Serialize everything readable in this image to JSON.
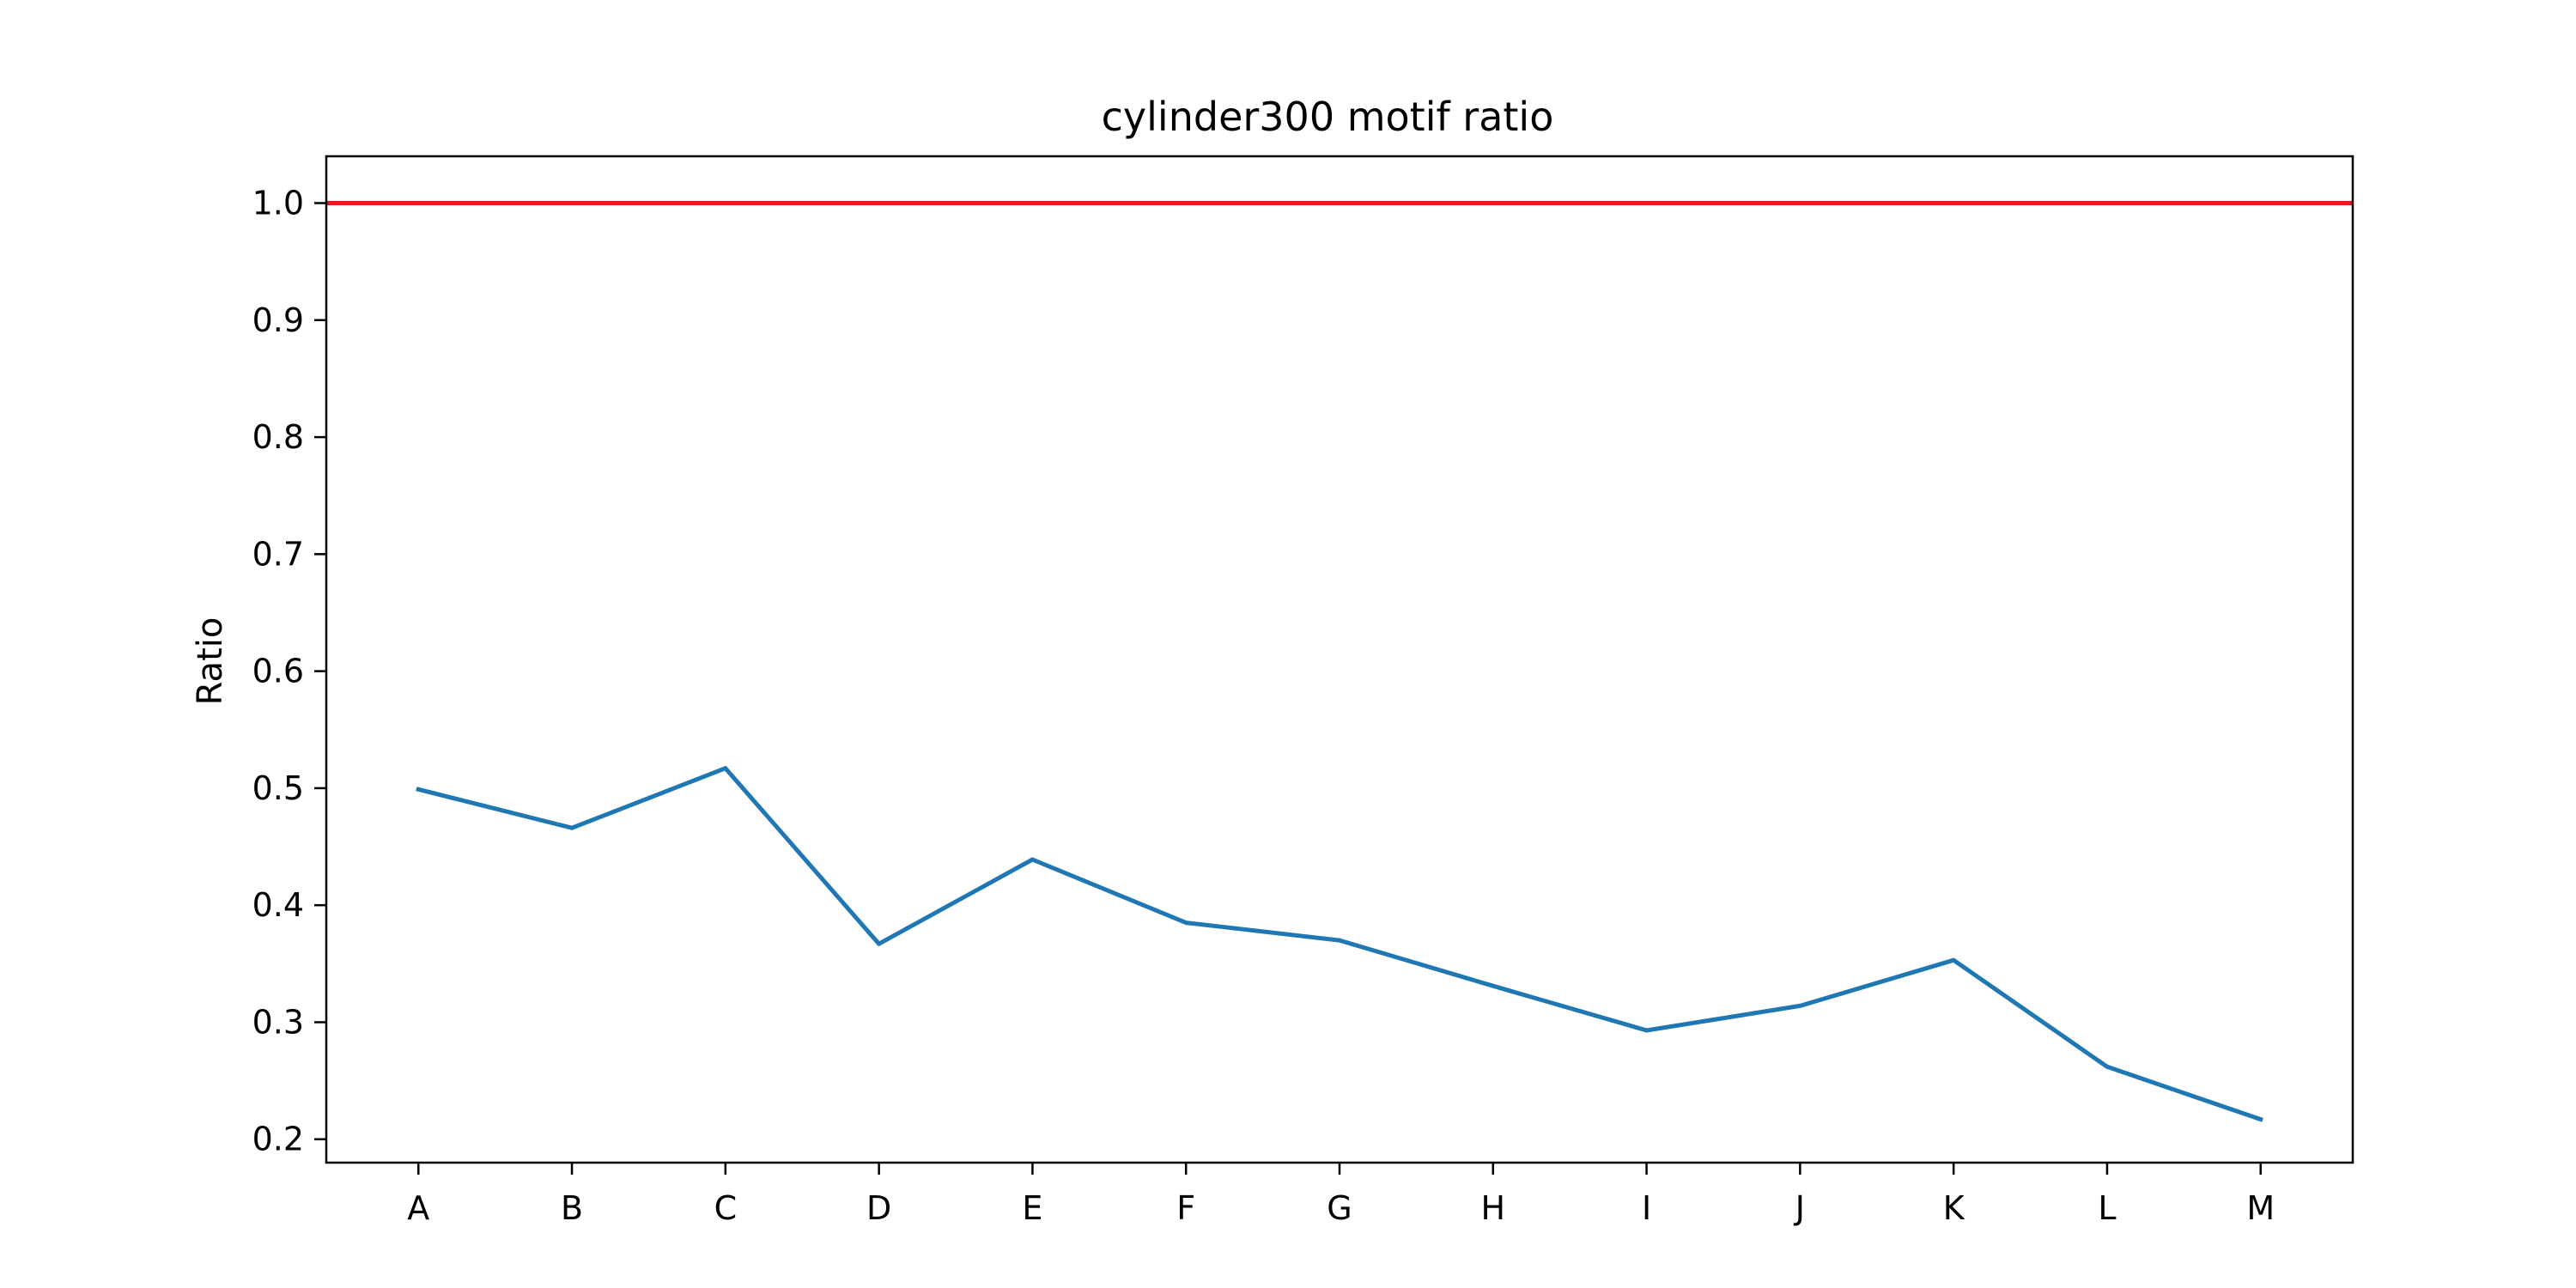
{
  "chart_data": {
    "type": "line",
    "title": "cylinder300 motif ratio",
    "xlabel": "",
    "ylabel": "Ratio",
    "categories": [
      "A",
      "B",
      "C",
      "D",
      "E",
      "F",
      "G",
      "H",
      "I",
      "J",
      "K",
      "L",
      "M"
    ],
    "series": [
      {
        "name": "motif ratio",
        "color": "#1f77b4",
        "values": [
          0.499,
          0.466,
          0.517,
          0.367,
          0.439,
          0.385,
          0.37,
          0.331,
          0.293,
          0.314,
          0.353,
          0.262,
          0.217
        ]
      }
    ],
    "reference_line": {
      "value": 1.0,
      "color": "#e31a1c"
    },
    "ylim": [
      0.18,
      1.04
    ],
    "yticks": [
      0.2,
      0.3,
      0.4,
      0.5,
      0.6,
      0.7,
      0.8,
      0.9,
      1.0
    ],
    "ytick_labels": [
      "0.2",
      "0.3",
      "0.4",
      "0.5",
      "0.6",
      "0.7",
      "0.8",
      "0.9",
      "1.0"
    ],
    "grid": false,
    "legend": "none"
  }
}
